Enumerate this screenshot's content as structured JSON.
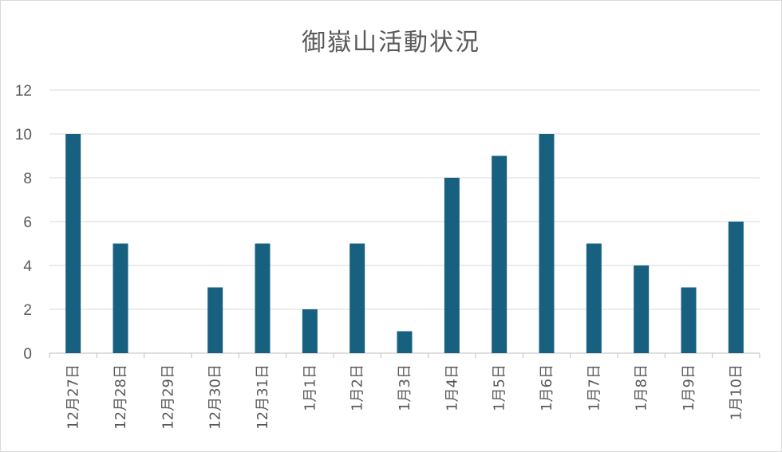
{
  "chart_data": {
    "type": "bar",
    "title": "御嶽山活動状況",
    "categories": [
      "12月27日",
      "12月28日",
      "12月29日",
      "12月30日",
      "12月31日",
      "1月1日",
      "1月2日",
      "1月3日",
      "1月4日",
      "1月5日",
      "1月6日",
      "1月7日",
      "1月8日",
      "1月9日",
      "1月10日"
    ],
    "values": [
      10,
      5,
      0,
      3,
      5,
      2,
      5,
      1,
      8,
      9,
      10,
      5,
      4,
      3,
      6
    ],
    "yticks": [
      "0",
      "2",
      "4",
      "6",
      "8",
      "10",
      "12"
    ],
    "ylim": [
      0,
      12
    ],
    "xlabel": "",
    "ylabel": "",
    "grid": true,
    "legend": "none",
    "bar_color": "#17607f",
    "grid_color": "#d9d9d9"
  }
}
